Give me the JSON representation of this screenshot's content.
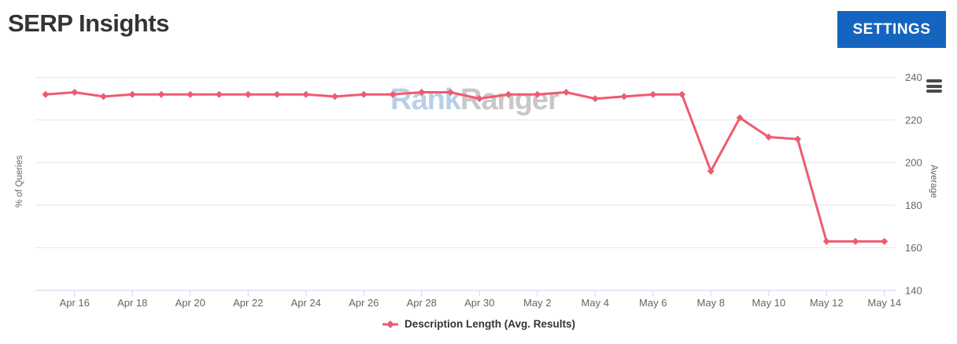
{
  "header": {
    "title": "SERP Insights",
    "settings_button": "SETTINGS"
  },
  "watermark": {
    "text_blue": "Rank",
    "text_gray": "Ranger"
  },
  "icons": {
    "chart_context_menu": "hamburger-menu-icon",
    "legend_marker": "diamond-line-marker"
  },
  "colors": {
    "title_text": "#343434",
    "settings_button_bg": "#1565c0",
    "settings_button_text": "#ffffff",
    "series_line": "#ef5b6e",
    "axis_label": "#666666",
    "axis_line": "#ccd6eb",
    "gridline": "#e6e6e6",
    "legend_text": "#333333",
    "watermark_blue": "#b9cfe9",
    "watermark_gray": "#c8c8c8",
    "menu_icon": "#4a4a4a"
  },
  "chart_data": {
    "type": "line",
    "title": "",
    "categories": [
      "Apr 15",
      "Apr 16",
      "Apr 17",
      "Apr 18",
      "Apr 19",
      "Apr 20",
      "Apr 21",
      "Apr 22",
      "Apr 23",
      "Apr 24",
      "Apr 25",
      "Apr 26",
      "Apr 27",
      "Apr 28",
      "Apr 29",
      "Apr 30",
      "May 1",
      "May 2",
      "May 3",
      "May 4",
      "May 5",
      "May 6",
      "May 7",
      "May 8",
      "May 9",
      "May 10",
      "May 11",
      "May 12",
      "May 13",
      "May 14"
    ],
    "series": [
      {
        "name": "Description Length (Avg. Results)",
        "color": "#ef5b6e",
        "values": [
          232,
          233,
          231,
          232,
          232,
          232,
          232,
          232,
          232,
          232,
          231,
          232,
          232,
          233,
          233,
          230,
          232,
          232,
          233,
          230,
          231,
          232,
          232,
          196,
          221,
          212,
          211,
          163,
          163,
          163
        ]
      }
    ],
    "x_tick_labels": [
      "Apr 16",
      "Apr 18",
      "Apr 20",
      "Apr 22",
      "Apr 24",
      "Apr 26",
      "Apr 28",
      "Apr 30",
      "May 2",
      "May 4",
      "May 6",
      "May 8",
      "May 10",
      "May 12",
      "May 14"
    ],
    "x_tick_step": 2,
    "ylabel_left": "% of Queries",
    "ylabel_right": "Average",
    "yticks": [
      240,
      220,
      200,
      180,
      160,
      140
    ],
    "ylim": [
      140,
      240
    ],
    "grid": "horizontal-only",
    "legend_position": "bottom-center",
    "marker": "diamond"
  }
}
